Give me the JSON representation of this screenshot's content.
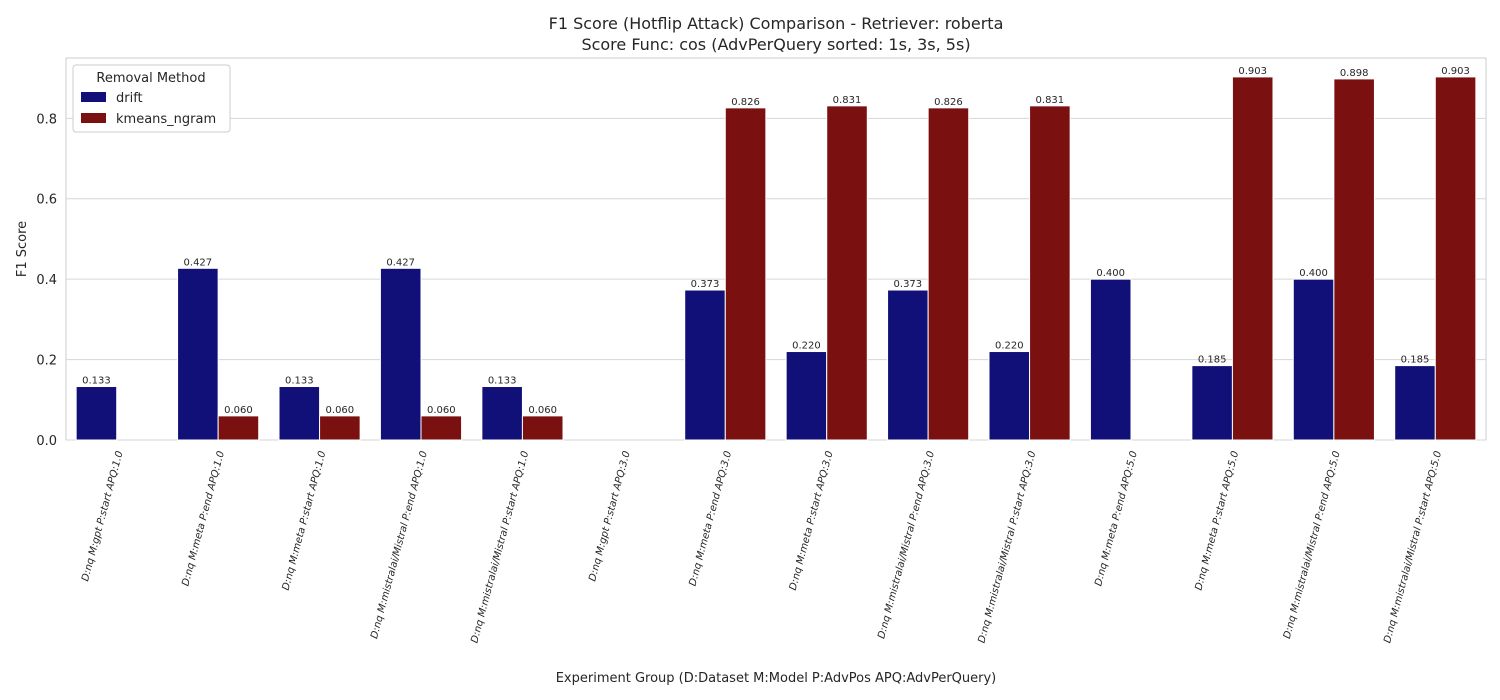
{
  "chart_data": {
    "type": "bar",
    "title_line1": "F1 Score (Hotflip Attack) Comparison - Retriever: roberta",
    "title_line2": "Score Func: cos (AdvPerQuery sorted: 1s, 3s, 5s)",
    "xlabel": "Experiment Group (D:Dataset M:Model P:AdvPos APQ:AdvPerQuery)",
    "ylabel": "F1 Score",
    "ylim": [
      0,
      0.95
    ],
    "yticks": [
      "0.0",
      "0.2",
      "0.4",
      "0.6",
      "0.8"
    ],
    "grid": true,
    "legend": {
      "title": "Removal Method",
      "placement": "top-left"
    },
    "categories": [
      "D:nq M:gpt P:start APQ:1.0",
      "D:nq M:meta P:end APQ:1.0",
      "D:nq M:meta P:start APQ:1.0",
      "D:nq M:mistralai/Mistral P:end APQ:1.0",
      "D:nq M:mistralai/Mistral P:start APQ:1.0",
      "D:nq M:gpt P:start APQ:3.0",
      "D:nq M:meta P:end APQ:3.0",
      "D:nq M:meta P:start APQ:3.0",
      "D:nq M:mistralai/Mistral P:end APQ:3.0",
      "D:nq M:mistralai/Mistral P:start APQ:3.0",
      "D:nq M:meta P:end APQ:5.0",
      "D:nq M:meta P:start APQ:5.0",
      "D:nq M:mistralai/Mistral P:end APQ:5.0",
      "D:nq M:mistralai/Mistral P:start APQ:5.0"
    ],
    "series": [
      {
        "name": "drift",
        "color": "#101078",
        "values": [
          0.133,
          0.427,
          0.133,
          0.427,
          0.133,
          null,
          0.373,
          0.22,
          0.373,
          0.22,
          0.4,
          0.185,
          0.4,
          0.185
        ],
        "labels": [
          "0.133",
          "0.427",
          "0.133",
          "0.427",
          "0.133",
          null,
          "0.373",
          "0.220",
          "0.373",
          "0.220",
          "0.400",
          "0.185",
          "0.400",
          "0.185"
        ]
      },
      {
        "name": "kmeans_ngram",
        "color": "#7a1010",
        "values": [
          null,
          0.06,
          0.06,
          0.06,
          0.06,
          null,
          0.826,
          0.831,
          0.826,
          0.831,
          null,
          0.903,
          0.898,
          0.903
        ],
        "labels": [
          null,
          "0.060",
          "0.060",
          "0.060",
          "0.060",
          null,
          "0.826",
          "0.831",
          "0.826",
          "0.831",
          null,
          "0.903",
          "0.898",
          "0.903"
        ]
      }
    ]
  }
}
